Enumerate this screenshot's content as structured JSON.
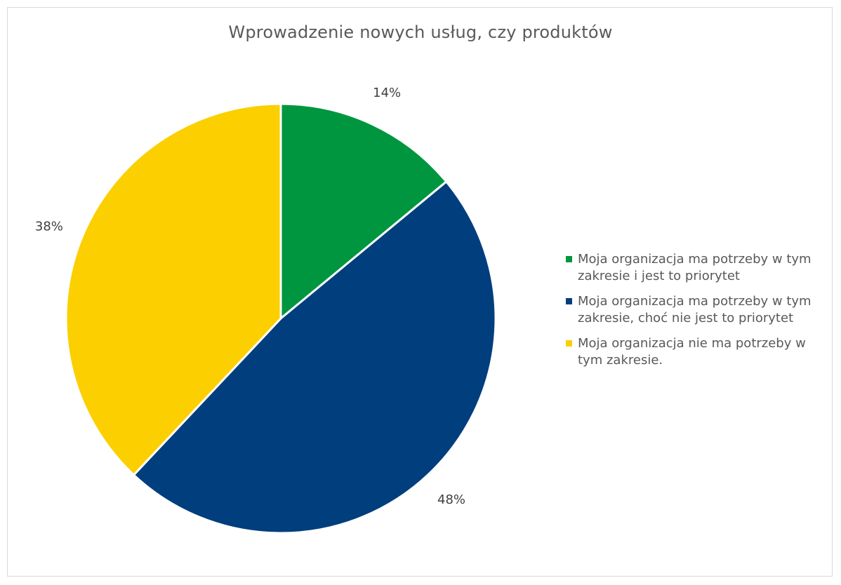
{
  "chart_data": {
    "type": "pie",
    "title": "Wprowadzenie nowych usług, czy produktów",
    "categories": [
      "Moja organizacja ma potrzeby w tym zakresie i jest to priorytet",
      "Moja organizacja ma potrzeby w tym zakresie, choć nie jest to priorytet",
      "Moja organizacja nie ma potrzeby w tym zakresie."
    ],
    "values": [
      14,
      48,
      38
    ],
    "data_labels": [
      "14%",
      "48%",
      "38%"
    ],
    "colors": [
      "#00963F",
      "#003E7E",
      "#FCCF00"
    ],
    "legend": "right"
  }
}
